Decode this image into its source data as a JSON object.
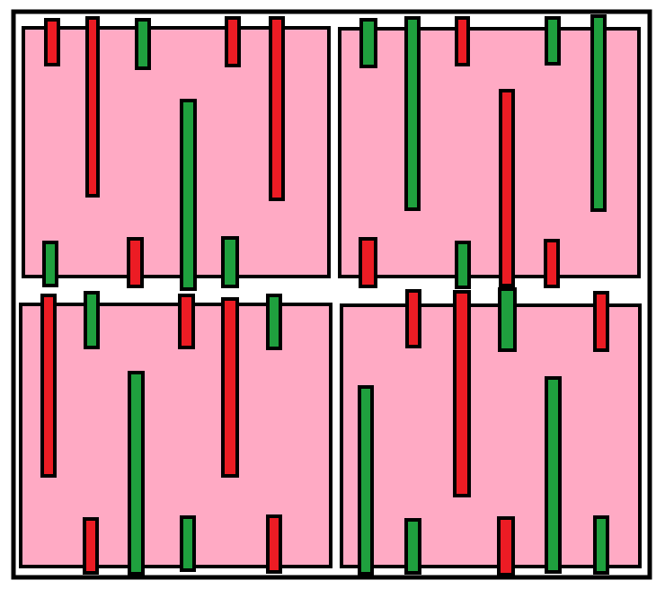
{
  "puzzle": {
    "colors": {
      "board": "#ffffff",
      "tile": "#ffaac4",
      "outline": "#000000",
      "red": "#ec1c24",
      "green": "#1fa03e"
    },
    "tiles": [
      {
        "name": "top-left",
        "bars": [
          {
            "color": "red",
            "side": "top"
          },
          {
            "color": "red",
            "side": "top"
          },
          {
            "color": "green",
            "side": "top"
          },
          {
            "color": "red",
            "side": "top"
          },
          {
            "color": "red",
            "side": "top"
          },
          {
            "color": "green",
            "side": "bottom"
          },
          {
            "color": "red",
            "side": "bottom"
          },
          {
            "color": "green",
            "side": "bottom"
          },
          {
            "color": "green",
            "side": "bottom"
          }
        ]
      },
      {
        "name": "top-right",
        "bars": [
          {
            "color": "green",
            "side": "top"
          },
          {
            "color": "green",
            "side": "top"
          },
          {
            "color": "red",
            "side": "top"
          },
          {
            "color": "green",
            "side": "top"
          },
          {
            "color": "green",
            "side": "top"
          },
          {
            "color": "red",
            "side": "bottom"
          },
          {
            "color": "green",
            "side": "bottom"
          },
          {
            "color": "red",
            "side": "bottom"
          },
          {
            "color": "red",
            "side": "bottom"
          }
        ]
      },
      {
        "name": "bottom-left",
        "bars": [
          {
            "color": "red",
            "side": "top"
          },
          {
            "color": "green",
            "side": "top"
          },
          {
            "color": "red",
            "side": "top"
          },
          {
            "color": "red",
            "side": "top"
          },
          {
            "color": "green",
            "side": "top"
          },
          {
            "color": "red",
            "side": "bottom"
          },
          {
            "color": "green",
            "side": "bottom"
          },
          {
            "color": "green",
            "side": "bottom"
          },
          {
            "color": "red",
            "side": "bottom"
          }
        ]
      },
      {
        "name": "bottom-right",
        "bars": [
          {
            "color": "red",
            "side": "top"
          },
          {
            "color": "red",
            "side": "top"
          },
          {
            "color": "green",
            "side": "top"
          },
          {
            "color": "red",
            "side": "top"
          },
          {
            "color": "green",
            "side": "bottom"
          },
          {
            "color": "green",
            "side": "bottom"
          },
          {
            "color": "red",
            "side": "bottom"
          },
          {
            "color": "green",
            "side": "bottom"
          },
          {
            "color": "green",
            "side": "bottom"
          }
        ]
      }
    ]
  }
}
